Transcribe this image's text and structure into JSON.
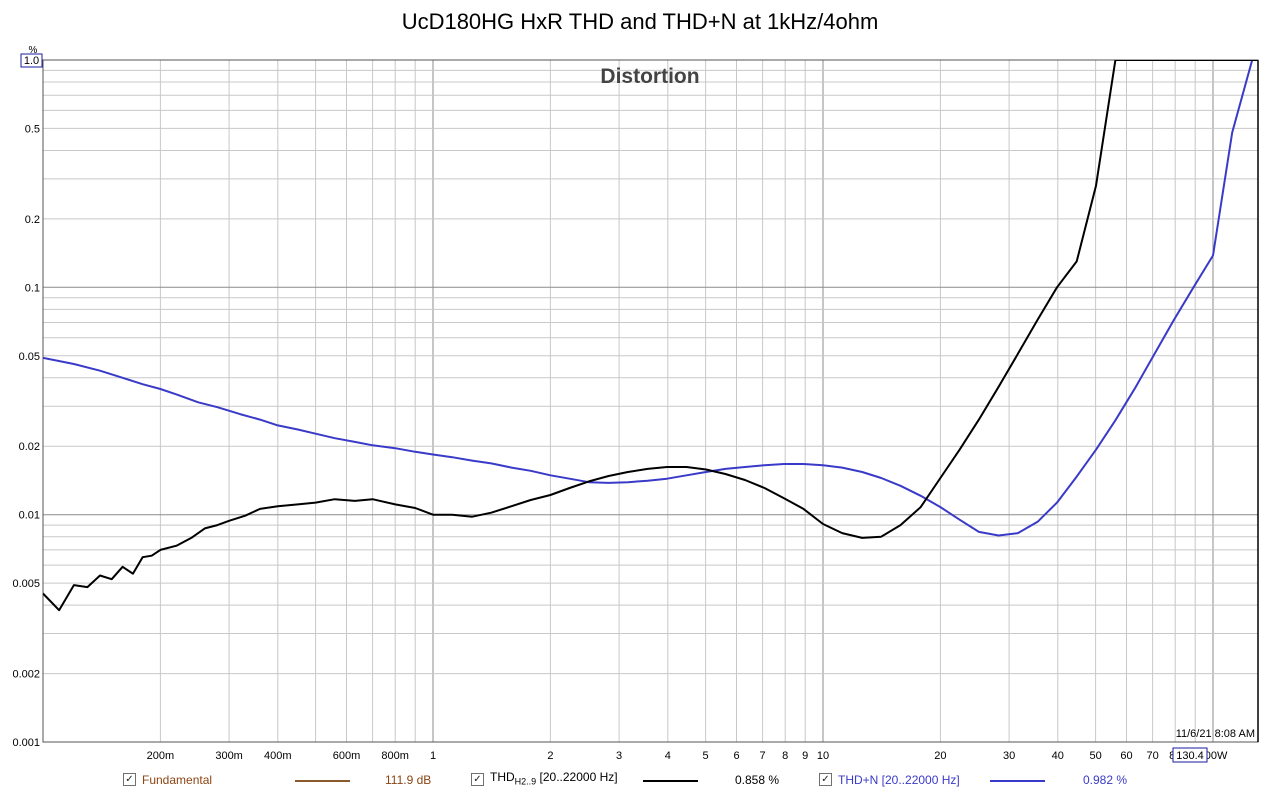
{
  "chart_data": {
    "type": "line",
    "title": "UcD180HG HxR THD and THD+N at 1kHz/4ohm",
    "subtitle": "Distortion",
    "yunit": "%",
    "xlabel": "",
    "ylabel": "",
    "x_scale": "log",
    "y_scale": "log",
    "xlim": [
      0.1,
      130.4
    ],
    "ylim": [
      0.001,
      1.0
    ],
    "x_ticks": [
      {
        "v": 0.2,
        "label": "200m"
      },
      {
        "v": 0.3,
        "label": "300m"
      },
      {
        "v": 0.4,
        "label": "400m"
      },
      {
        "v": 0.6,
        "label": "600m"
      },
      {
        "v": 0.8,
        "label": "800m"
      },
      {
        "v": 1,
        "label": "1"
      },
      {
        "v": 2,
        "label": "2"
      },
      {
        "v": 3,
        "label": "3"
      },
      {
        "v": 4,
        "label": "4"
      },
      {
        "v": 5,
        "label": "5"
      },
      {
        "v": 6,
        "label": "6"
      },
      {
        "v": 7,
        "label": "7"
      },
      {
        "v": 8,
        "label": "8"
      },
      {
        "v": 9,
        "label": "9"
      },
      {
        "v": 10,
        "label": "10"
      },
      {
        "v": 20,
        "label": "20"
      },
      {
        "v": 30,
        "label": "30"
      },
      {
        "v": 40,
        "label": "40"
      },
      {
        "v": 50,
        "label": "50"
      },
      {
        "v": 60,
        "label": "60"
      },
      {
        "v": 70,
        "label": "70"
      },
      {
        "v": 80,
        "label": "80"
      },
      {
        "v": 100,
        "label": "100W"
      }
    ],
    "x_end_label": "130.4",
    "y_ticks": [
      {
        "v": 0.001,
        "label": "0.001"
      },
      {
        "v": 0.002,
        "label": "0.002"
      },
      {
        "v": 0.005,
        "label": "0.005"
      },
      {
        "v": 0.01,
        "label": "0.01"
      },
      {
        "v": 0.02,
        "label": "0.02"
      },
      {
        "v": 0.05,
        "label": "0.05"
      },
      {
        "v": 0.1,
        "label": "0.1"
      },
      {
        "v": 0.2,
        "label": "0.2"
      },
      {
        "v": 0.5,
        "label": "0.5"
      }
    ],
    "y_top_label": "1.0",
    "timestamp": "11/6/21 8:08 AM",
    "grid": true,
    "cursor_x": 130.4,
    "series": [
      {
        "name": "THD+N [20..22000 Hz]",
        "color": "#3a3ac8",
        "x": [
          0.1,
          0.12,
          0.14,
          0.16,
          0.18,
          0.2,
          0.22,
          0.25,
          0.28,
          0.32,
          0.36,
          0.4,
          0.45,
          0.5,
          0.56,
          0.63,
          0.7,
          0.8,
          0.9,
          1.0,
          1.12,
          1.26,
          1.41,
          1.59,
          1.78,
          2.0,
          2.24,
          2.51,
          2.82,
          3.16,
          3.55,
          3.98,
          4.47,
          5.01,
          5.62,
          6.31,
          7.08,
          7.94,
          8.91,
          10.0,
          11.2,
          12.6,
          14.1,
          15.8,
          17.8,
          20.0,
          22.4,
          25.1,
          28.2,
          31.6,
          35.5,
          39.8,
          44.7,
          50.1,
          56.2,
          63.1,
          70.8,
          79.4,
          89.1,
          100,
          112,
          126,
          130.4
        ],
        "y": [
          0.049,
          0.046,
          0.043,
          0.04,
          0.0375,
          0.0357,
          0.0338,
          0.0312,
          0.0297,
          0.0277,
          0.0262,
          0.0247,
          0.0237,
          0.0227,
          0.0217,
          0.0209,
          0.0202,
          0.0196,
          0.0189,
          0.0184,
          0.0179,
          0.0173,
          0.0168,
          0.0161,
          0.0156,
          0.0149,
          0.0144,
          0.0139,
          0.0138,
          0.0139,
          0.0141,
          0.0144,
          0.0149,
          0.0154,
          0.0159,
          0.0162,
          0.0165,
          0.0167,
          0.0167,
          0.0165,
          0.0161,
          0.0154,
          0.0145,
          0.0134,
          0.0121,
          0.0108,
          0.0095,
          0.0084,
          0.0081,
          0.0083,
          0.0093,
          0.0113,
          0.0147,
          0.0193,
          0.026,
          0.036,
          0.051,
          0.072,
          0.1,
          0.138,
          0.48,
          1.0,
          1.0
        ]
      },
      {
        "name": "THD H2..9 [20..22000 Hz]",
        "color": "#000000",
        "x": [
          0.1,
          0.11,
          0.12,
          0.13,
          0.14,
          0.15,
          0.16,
          0.17,
          0.18,
          0.19,
          0.2,
          0.22,
          0.24,
          0.26,
          0.28,
          0.3,
          0.33,
          0.36,
          0.4,
          0.45,
          0.5,
          0.56,
          0.63,
          0.7,
          0.8,
          0.9,
          1.0,
          1.12,
          1.26,
          1.41,
          1.59,
          1.78,
          2.0,
          2.24,
          2.51,
          2.82,
          3.16,
          3.55,
          3.98,
          4.47,
          5.01,
          5.62,
          6.31,
          7.08,
          7.94,
          8.91,
          10.0,
          11.2,
          12.6,
          14.1,
          15.8,
          17.8,
          20.0,
          22.4,
          25.1,
          28.2,
          31.6,
          35.5,
          39.8,
          44.7,
          50.1,
          56.2,
          63.1,
          70.8,
          79.4,
          89.1,
          100,
          112,
          126,
          130.4
        ],
        "y": [
          0.0045,
          0.0038,
          0.0049,
          0.0048,
          0.0054,
          0.0052,
          0.0059,
          0.0055,
          0.0065,
          0.0066,
          0.007,
          0.0073,
          0.0079,
          0.0087,
          0.009,
          0.0094,
          0.0099,
          0.0106,
          0.0109,
          0.0111,
          0.0113,
          0.0117,
          0.0115,
          0.0117,
          0.0111,
          0.0107,
          0.01,
          0.01,
          0.0098,
          0.0102,
          0.0109,
          0.0116,
          0.0122,
          0.0131,
          0.014,
          0.0148,
          0.0154,
          0.0159,
          0.0162,
          0.0162,
          0.0158,
          0.0151,
          0.0142,
          0.0131,
          0.0118,
          0.0106,
          0.0091,
          0.0083,
          0.0079,
          0.008,
          0.009,
          0.0108,
          0.0145,
          0.0193,
          0.0262,
          0.0365,
          0.051,
          0.072,
          0.1,
          0.13,
          0.28,
          1.0,
          1.0,
          1.0,
          1.0,
          1.0,
          1.0,
          1.0,
          1.0,
          1.0
        ]
      }
    ]
  },
  "legend": {
    "items": [
      {
        "label": "Fundamental",
        "value": "111.9 dB",
        "color": "#8b5a2b",
        "text_color": "#8b4513"
      },
      {
        "label": "THD",
        "label_sub": "H2..9",
        "label_rest": " [20..22000 Hz]",
        "value": "0.858 %",
        "color": "#000000",
        "text_color": "#000000"
      },
      {
        "label": "THD+N [20..22000 Hz]",
        "value": "0.982 %",
        "color": "#3a3ac8",
        "text_color": "#3a3ac8"
      }
    ],
    "checkbox_mark": "✓"
  }
}
